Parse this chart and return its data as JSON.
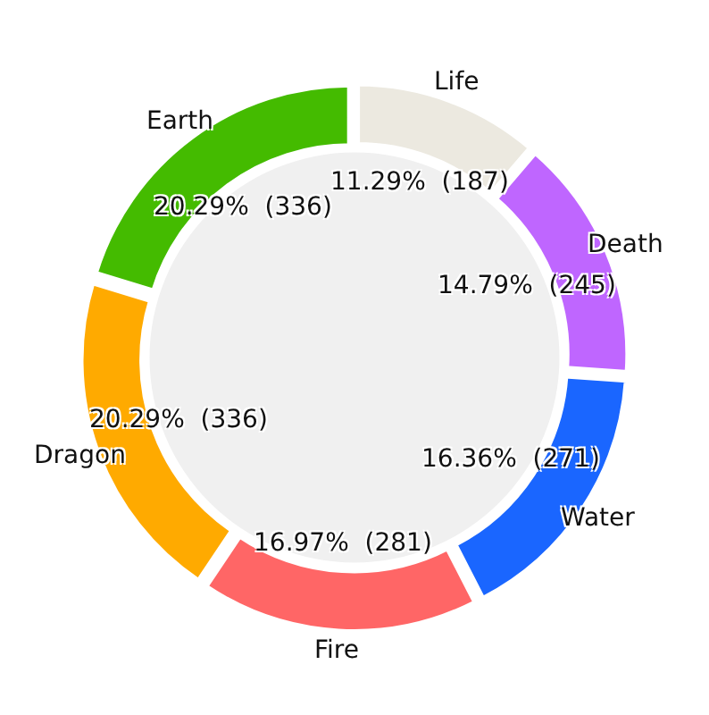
{
  "chart_data": {
    "type": "donut",
    "categories": [
      "Life",
      "Death",
      "Water",
      "Fire",
      "Dragon",
      "Earth"
    ],
    "values": [
      187,
      245,
      271,
      281,
      336,
      336
    ],
    "colors": [
      "#ece9e0",
      "#bf66ff",
      "#1a66ff",
      "#ff6666",
      "#ffaa00",
      "#44bb00"
    ],
    "value_labels": [
      "11.29%  (187)",
      "14.79%  (245)",
      "16.36%  (271)",
      "16.97%  (281)",
      "20.29%  (336)",
      "20.29%  (336)"
    ]
  }
}
